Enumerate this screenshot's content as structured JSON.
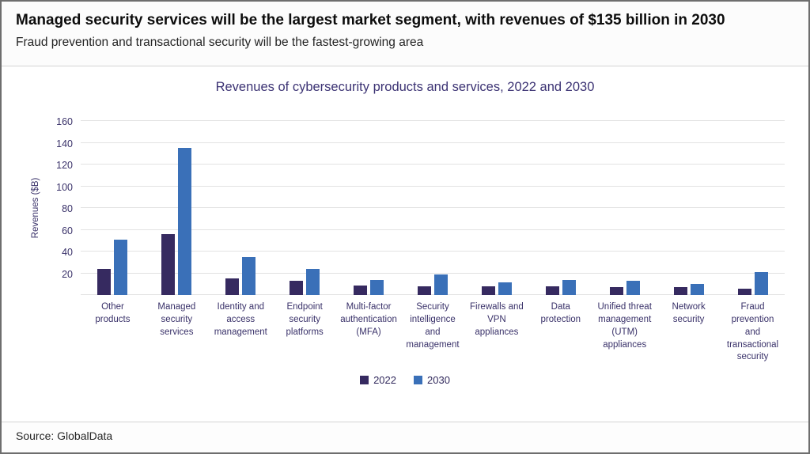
{
  "header": {
    "title": "Managed security services will be the largest market segment, with revenues of $135 billion in 2030",
    "subtitle": "Fraud prevention and transactional security will be the fastest-growing area"
  },
  "footer": {
    "source": "Source: GlobalData"
  },
  "chart_data": {
    "type": "bar",
    "title": "Revenues of cybersecurity products and services, 2022 and 2030",
    "xlabel": "",
    "ylabel": "Revenues ($B)",
    "ylim": [
      0,
      160
    ],
    "ytick_step": 20,
    "grid": true,
    "legend_position": "bottom",
    "categories": [
      "Other products",
      "Managed security services",
      "Identity and access management",
      "Endpoint security platforms",
      "Multi-factor authentication (MFA)",
      "Security intelligence and management",
      "Firewalls and VPN appliances",
      "Data protection",
      "Unified threat management (UTM) appliances",
      "Network security",
      "Fraud prevention and transactional security"
    ],
    "series": [
      {
        "name": "2022",
        "color": "#362a60",
        "values": [
          24,
          56,
          15,
          13,
          9,
          8,
          8,
          8,
          7,
          7,
          6
        ]
      },
      {
        "name": "2030",
        "color": "#3a70b8",
        "values": [
          51,
          135,
          35,
          24,
          14,
          19,
          12,
          14,
          13,
          10,
          21
        ]
      }
    ]
  }
}
